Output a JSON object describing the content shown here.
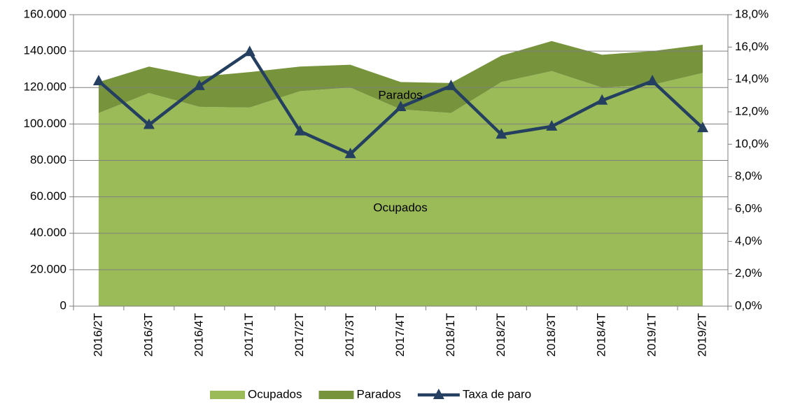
{
  "chart_data": {
    "type": "area",
    "categories": [
      "2016/2T",
      "2016/3T",
      "2016/4T",
      "2017/1T",
      "2017/2T",
      "2017/3T",
      "2017/4T",
      "2018/1T",
      "2018/2T",
      "2018/3T",
      "2018/4T",
      "2019/1T",
      "2019/2T"
    ],
    "series": [
      {
        "name": "Ocupados",
        "color": "#9bbb59",
        "values": [
          106000,
          117000,
          109400,
          109000,
          118000,
          120000,
          108000,
          106000,
          123000,
          129000,
          120000,
          121500,
          128000
        ]
      },
      {
        "name": "Parados",
        "color": "#77933c",
        "values": [
          17000,
          14500,
          16600,
          19500,
          13500,
          12500,
          15000,
          16500,
          14500,
          16500,
          18000,
          18500,
          15500
        ]
      },
      {
        "name": "Taxa de paro",
        "color": "#243f60",
        "type": "line",
        "axis": "y2",
        "values": [
          13.9,
          11.2,
          13.6,
          15.7,
          10.8,
          9.4,
          12.3,
          13.6,
          10.6,
          11.1,
          12.7,
          13.9,
          11.0
        ]
      }
    ],
    "annotations": [
      "Parados",
      "Ocupados"
    ],
    "ylim": [
      0,
      160000
    ],
    "yticks": [
      0,
      {
        "value": 20000,
        "label": "20.000"
      },
      {
        "value": 40000,
        "label": "40.000"
      },
      {
        "value": 60000,
        "label": "60.000"
      },
      {
        "value": 80000,
        "label": "80.000"
      },
      {
        "value": 100000,
        "label": "100.000"
      },
      {
        "value": 120000,
        "label": "120.000"
      },
      {
        "value": 140000,
        "label": "140.000"
      },
      {
        "value": 160000,
        "label": "160.000"
      }
    ],
    "y2lim": [
      0,
      18
    ],
    "y2ticks": [
      {
        "value": 0,
        "label": "0,0%"
      },
      {
        "value": 2,
        "label": "2,0%"
      },
      {
        "value": 4,
        "label": "4,0%"
      },
      {
        "value": 6,
        "label": "6,0%"
      },
      {
        "value": 8,
        "label": "8,0%"
      },
      {
        "value": 10,
        "label": "10,0%"
      },
      {
        "value": 12,
        "label": "12,0%"
      },
      {
        "value": 14,
        "label": "14,0%"
      },
      {
        "value": 16,
        "label": "16,0%"
      },
      {
        "value": 18,
        "label": "18,0%"
      }
    ],
    "grid": true,
    "legend": "bottom"
  }
}
